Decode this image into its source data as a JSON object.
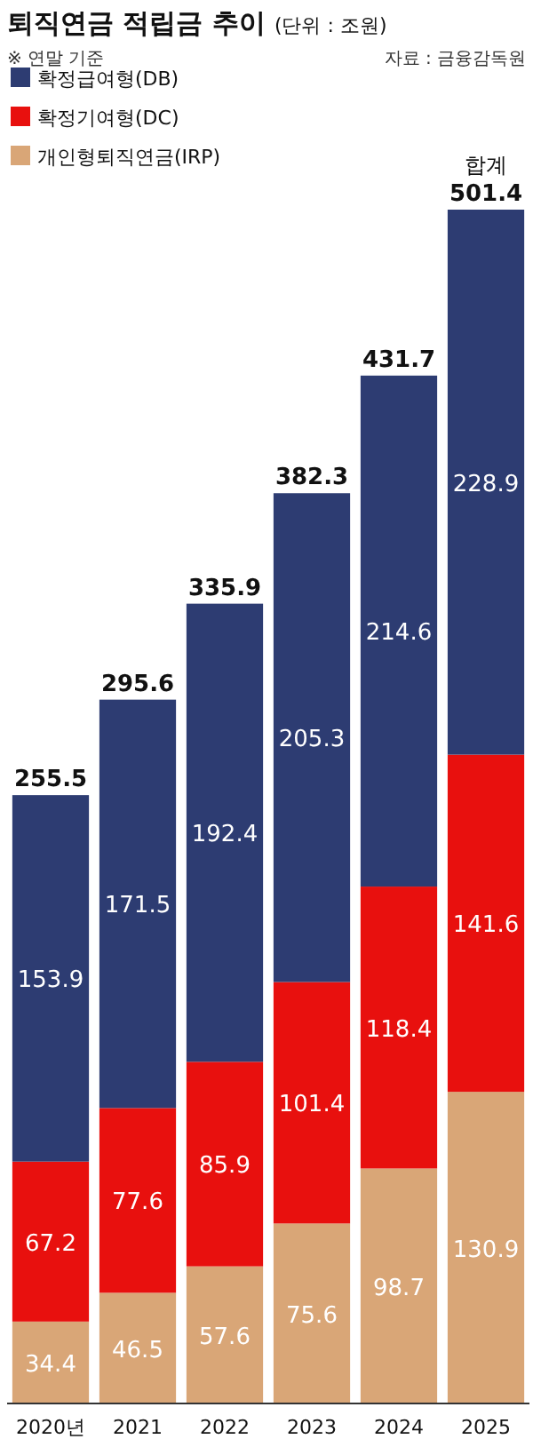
{
  "chart_data": {
    "type": "bar",
    "stacked": true,
    "title": "퇴직연금 적립금 추이",
    "subtitle": "(단위 : 조원)",
    "annotations": [
      "※ 연말 기준",
      "자료 : 금융감독원",
      {
        "text": "합계",
        "x": "2025",
        "y": 501.4
      }
    ],
    "categories": [
      "2020년",
      "2021",
      "2022",
      "2023",
      "2024",
      "2025"
    ],
    "series": [
      {
        "name": "개인형퇴직연금(IRP)",
        "color": "#d9a677",
        "values": [
          34.4,
          46.5,
          57.6,
          75.6,
          98.7,
          130.9
        ]
      },
      {
        "name": "확정기여형(DC)",
        "color": "#e8100e",
        "values": [
          67.2,
          77.6,
          85.9,
          101.4,
          118.4,
          141.6
        ]
      },
      {
        "name": "확정급여형(DB)",
        "color": "#2d3c72",
        "values": [
          153.9,
          171.5,
          192.4,
          205.3,
          214.6,
          228.9
        ]
      }
    ],
    "totals": [
      "255.5",
      "295.6",
      "335.9",
      "382.3",
      "431.7",
      "501.4"
    ],
    "data_labels": true,
    "legend": "top left"
  }
}
